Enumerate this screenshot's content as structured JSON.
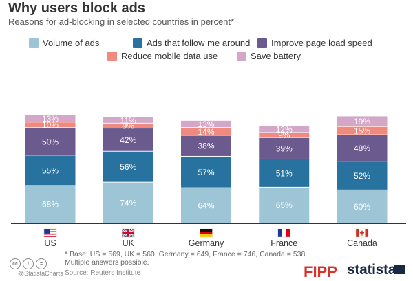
{
  "title": "Why users block ads",
  "subtitle": "Reasons for ad-blocking in selected countries in percent*",
  "legend": [
    {
      "label": "Volume of ads",
      "color": "#9ec5d5"
    },
    {
      "label": "Ads that follow me around",
      "color": "#2872a0"
    },
    {
      "label": "Improve page load speed",
      "color": "#6b5a8e"
    },
    {
      "label": "Reduce mobile data use",
      "color": "#f08a7e"
    },
    {
      "label": "Save battery",
      "color": "#d4a6c8"
    }
  ],
  "chart_data": {
    "type": "bar",
    "stacked": true,
    "categories": [
      "US",
      "UK",
      "Germany",
      "France",
      "Canada"
    ],
    "flags": [
      "us-flag-icon",
      "uk-flag-icon",
      "germany-flag-icon",
      "france-flag-icon",
      "canada-flag-icon"
    ],
    "series": [
      {
        "name": "Volume of ads",
        "color": "#9ec5d5",
        "label_color": "#ffffff",
        "values": [
          68,
          74,
          64,
          65,
          60
        ]
      },
      {
        "name": "Ads that follow me around",
        "color": "#2872a0",
        "label_color": "#ffffff",
        "values": [
          55,
          56,
          57,
          51,
          52
        ]
      },
      {
        "name": "Improve page load speed",
        "color": "#6b5a8e",
        "label_color": "#ffffff",
        "values": [
          50,
          42,
          38,
          39,
          48
        ]
      },
      {
        "name": "Reduce mobile data use",
        "color": "#f08a7e",
        "label_color": "#ffffff",
        "values": [
          10,
          9,
          14,
          9,
          15
        ]
      },
      {
        "name": "Save battery",
        "color": "#d4a6c8",
        "label_color": "#ffffff",
        "values": [
          13,
          11,
          13,
          12,
          19
        ]
      }
    ],
    "value_suffix": "%"
  },
  "footnote_line1": "* Base: US = 569, UK = 560, Germany = 649, France = 746, Canada = 538.",
  "footnote_line2": "Multiple answers possible.",
  "source": "Source: Reuters Institute",
  "credit": "@StatistaCharts",
  "logos": {
    "fipp": "FIPP",
    "statista": "statista"
  }
}
